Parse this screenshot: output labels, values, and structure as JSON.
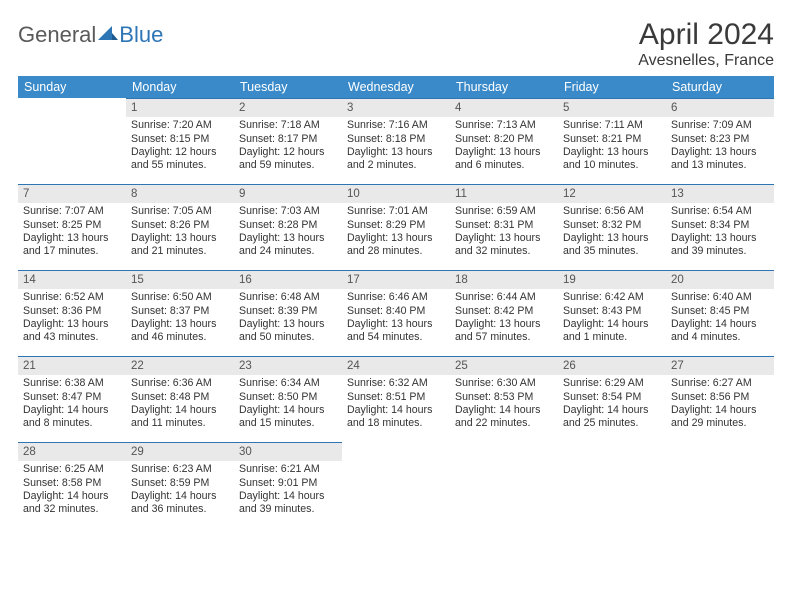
{
  "logo": {
    "part1": "General",
    "part2": "Blue"
  },
  "title": "April 2024",
  "location": "Avesnelles, France",
  "colors": {
    "header_bg": "#3a8ac9",
    "accent_border": "#2e75b6",
    "daynum_bg": "#e9e9e9",
    "text": "#333333",
    "page_bg": "#ffffff"
  },
  "weekdays": [
    "Sunday",
    "Monday",
    "Tuesday",
    "Wednesday",
    "Thursday",
    "Friday",
    "Saturday"
  ],
  "weeks": [
    [
      {
        "blank": true
      },
      {
        "num": "1",
        "sunrise": "Sunrise: 7:20 AM",
        "sunset": "Sunset: 8:15 PM",
        "daylight": "Daylight: 12 hours and 55 minutes."
      },
      {
        "num": "2",
        "sunrise": "Sunrise: 7:18 AM",
        "sunset": "Sunset: 8:17 PM",
        "daylight": "Daylight: 12 hours and 59 minutes."
      },
      {
        "num": "3",
        "sunrise": "Sunrise: 7:16 AM",
        "sunset": "Sunset: 8:18 PM",
        "daylight": "Daylight: 13 hours and 2 minutes."
      },
      {
        "num": "4",
        "sunrise": "Sunrise: 7:13 AM",
        "sunset": "Sunset: 8:20 PM",
        "daylight": "Daylight: 13 hours and 6 minutes."
      },
      {
        "num": "5",
        "sunrise": "Sunrise: 7:11 AM",
        "sunset": "Sunset: 8:21 PM",
        "daylight": "Daylight: 13 hours and 10 minutes."
      },
      {
        "num": "6",
        "sunrise": "Sunrise: 7:09 AM",
        "sunset": "Sunset: 8:23 PM",
        "daylight": "Daylight: 13 hours and 13 minutes."
      }
    ],
    [
      {
        "num": "7",
        "sunrise": "Sunrise: 7:07 AM",
        "sunset": "Sunset: 8:25 PM",
        "daylight": "Daylight: 13 hours and 17 minutes."
      },
      {
        "num": "8",
        "sunrise": "Sunrise: 7:05 AM",
        "sunset": "Sunset: 8:26 PM",
        "daylight": "Daylight: 13 hours and 21 minutes."
      },
      {
        "num": "9",
        "sunrise": "Sunrise: 7:03 AM",
        "sunset": "Sunset: 8:28 PM",
        "daylight": "Daylight: 13 hours and 24 minutes."
      },
      {
        "num": "10",
        "sunrise": "Sunrise: 7:01 AM",
        "sunset": "Sunset: 8:29 PM",
        "daylight": "Daylight: 13 hours and 28 minutes."
      },
      {
        "num": "11",
        "sunrise": "Sunrise: 6:59 AM",
        "sunset": "Sunset: 8:31 PM",
        "daylight": "Daylight: 13 hours and 32 minutes."
      },
      {
        "num": "12",
        "sunrise": "Sunrise: 6:56 AM",
        "sunset": "Sunset: 8:32 PM",
        "daylight": "Daylight: 13 hours and 35 minutes."
      },
      {
        "num": "13",
        "sunrise": "Sunrise: 6:54 AM",
        "sunset": "Sunset: 8:34 PM",
        "daylight": "Daylight: 13 hours and 39 minutes."
      }
    ],
    [
      {
        "num": "14",
        "sunrise": "Sunrise: 6:52 AM",
        "sunset": "Sunset: 8:36 PM",
        "daylight": "Daylight: 13 hours and 43 minutes."
      },
      {
        "num": "15",
        "sunrise": "Sunrise: 6:50 AM",
        "sunset": "Sunset: 8:37 PM",
        "daylight": "Daylight: 13 hours and 46 minutes."
      },
      {
        "num": "16",
        "sunrise": "Sunrise: 6:48 AM",
        "sunset": "Sunset: 8:39 PM",
        "daylight": "Daylight: 13 hours and 50 minutes."
      },
      {
        "num": "17",
        "sunrise": "Sunrise: 6:46 AM",
        "sunset": "Sunset: 8:40 PM",
        "daylight": "Daylight: 13 hours and 54 minutes."
      },
      {
        "num": "18",
        "sunrise": "Sunrise: 6:44 AM",
        "sunset": "Sunset: 8:42 PM",
        "daylight": "Daylight: 13 hours and 57 minutes."
      },
      {
        "num": "19",
        "sunrise": "Sunrise: 6:42 AM",
        "sunset": "Sunset: 8:43 PM",
        "daylight": "Daylight: 14 hours and 1 minute."
      },
      {
        "num": "20",
        "sunrise": "Sunrise: 6:40 AM",
        "sunset": "Sunset: 8:45 PM",
        "daylight": "Daylight: 14 hours and 4 minutes."
      }
    ],
    [
      {
        "num": "21",
        "sunrise": "Sunrise: 6:38 AM",
        "sunset": "Sunset: 8:47 PM",
        "daylight": "Daylight: 14 hours and 8 minutes."
      },
      {
        "num": "22",
        "sunrise": "Sunrise: 6:36 AM",
        "sunset": "Sunset: 8:48 PM",
        "daylight": "Daylight: 14 hours and 11 minutes."
      },
      {
        "num": "23",
        "sunrise": "Sunrise: 6:34 AM",
        "sunset": "Sunset: 8:50 PM",
        "daylight": "Daylight: 14 hours and 15 minutes."
      },
      {
        "num": "24",
        "sunrise": "Sunrise: 6:32 AM",
        "sunset": "Sunset: 8:51 PM",
        "daylight": "Daylight: 14 hours and 18 minutes."
      },
      {
        "num": "25",
        "sunrise": "Sunrise: 6:30 AM",
        "sunset": "Sunset: 8:53 PM",
        "daylight": "Daylight: 14 hours and 22 minutes."
      },
      {
        "num": "26",
        "sunrise": "Sunrise: 6:29 AM",
        "sunset": "Sunset: 8:54 PM",
        "daylight": "Daylight: 14 hours and 25 minutes."
      },
      {
        "num": "27",
        "sunrise": "Sunrise: 6:27 AM",
        "sunset": "Sunset: 8:56 PM",
        "daylight": "Daylight: 14 hours and 29 minutes."
      }
    ],
    [
      {
        "num": "28",
        "sunrise": "Sunrise: 6:25 AM",
        "sunset": "Sunset: 8:58 PM",
        "daylight": "Daylight: 14 hours and 32 minutes."
      },
      {
        "num": "29",
        "sunrise": "Sunrise: 6:23 AM",
        "sunset": "Sunset: 8:59 PM",
        "daylight": "Daylight: 14 hours and 36 minutes."
      },
      {
        "num": "30",
        "sunrise": "Sunrise: 6:21 AM",
        "sunset": "Sunset: 9:01 PM",
        "daylight": "Daylight: 14 hours and 39 minutes."
      },
      {
        "blank": true
      },
      {
        "blank": true
      },
      {
        "blank": true
      },
      {
        "blank": true
      }
    ]
  ]
}
